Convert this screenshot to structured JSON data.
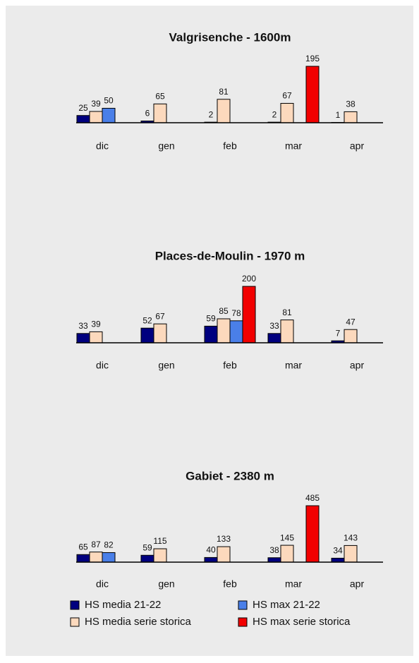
{
  "chart_data": [
    {
      "type": "bar",
      "title": "Valgrisenche - 1600m",
      "categories": [
        "dic",
        "gen",
        "feb",
        "mar",
        "apr"
      ],
      "series": [
        {
          "name": "HS media 21-22",
          "color": "#00007f",
          "values": [
            25,
            6,
            2,
            2,
            1
          ]
        },
        {
          "name": "HS media serie storica",
          "color": "#fcd9bd",
          "values": [
            39,
            65,
            81,
            67,
            38
          ]
        },
        {
          "name": "HS max 21-22",
          "color": "#4a7fe8",
          "values": [
            50,
            null,
            null,
            null,
            null
          ]
        },
        {
          "name": "HS max serie storica",
          "color": "#f20000",
          "values": [
            null,
            null,
            null,
            195,
            null
          ]
        }
      ]
    },
    {
      "type": "bar",
      "title": "Places-de-Moulin - 1970 m",
      "categories": [
        "dic",
        "gen",
        "feb",
        "mar",
        "apr"
      ],
      "series": [
        {
          "name": "HS media 21-22",
          "color": "#00007f",
          "values": [
            33,
            52,
            59,
            33,
            7
          ]
        },
        {
          "name": "HS media serie storica",
          "color": "#fcd9bd",
          "values": [
            39,
            67,
            85,
            81,
            47
          ]
        },
        {
          "name": "HS max 21-22",
          "color": "#4a7fe8",
          "values": [
            null,
            null,
            78,
            null,
            null
          ]
        },
        {
          "name": "HS max serie storica",
          "color": "#f20000",
          "values": [
            null,
            null,
            200,
            null,
            null
          ]
        }
      ]
    },
    {
      "type": "bar",
      "title": "Gabiet - 2380 m",
      "categories": [
        "dic",
        "gen",
        "feb",
        "mar",
        "apr"
      ],
      "series": [
        {
          "name": "HS media 21-22",
          "color": "#00007f",
          "values": [
            65,
            59,
            40,
            38,
            34
          ]
        },
        {
          "name": "HS media serie storica",
          "color": "#fcd9bd",
          "values": [
            87,
            115,
            133,
            145,
            143
          ]
        },
        {
          "name": "HS max 21-22",
          "color": "#4a7fe8",
          "values": [
            82,
            null,
            null,
            null,
            null
          ]
        },
        {
          "name": "HS max serie storica",
          "color": "#f20000",
          "values": [
            null,
            null,
            null,
            485,
            null
          ]
        }
      ]
    }
  ]
}
